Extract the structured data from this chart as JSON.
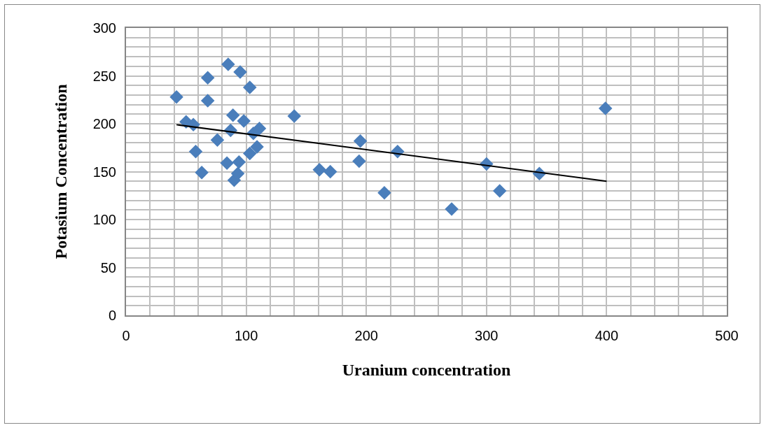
{
  "chart_data": {
    "type": "scatter",
    "xlabel": "Uranium concentration",
    "ylabel": "Potasium Concentration",
    "xlim": [
      0,
      500
    ],
    "ylim": [
      0,
      300
    ],
    "xticks": [
      0,
      {
        "value": 20,
        "label": null
      },
      {
        "value": 40,
        "label": null
      },
      {
        "value": 60,
        "label": null
      },
      {
        "value": 80,
        "label": null
      },
      100,
      {
        "value": 120,
        "label": null
      },
      {
        "value": 140,
        "label": null
      },
      {
        "value": 160,
        "label": null
      },
      {
        "value": 180,
        "label": null
      },
      200,
      {
        "value": 220,
        "label": null
      },
      {
        "value": 240,
        "label": null
      },
      {
        "value": 260,
        "label": null
      },
      {
        "value": 280,
        "label": null
      },
      300,
      {
        "value": 320,
        "label": null
      },
      {
        "value": 340,
        "label": null
      },
      {
        "value": 360,
        "label": null
      },
      {
        "value": 380,
        "label": null
      },
      400,
      {
        "value": 420,
        "label": null
      },
      {
        "value": 440,
        "label": null
      },
      {
        "value": 460,
        "label": null
      },
      {
        "value": 480,
        "label": null
      },
      500
    ],
    "yticks": [
      0,
      {
        "value": 10,
        "label": null
      },
      {
        "value": 20,
        "label": null
      },
      {
        "value": 30,
        "label": null
      },
      {
        "value": 40,
        "label": null
      },
      50,
      {
        "value": 60,
        "label": null
      },
      {
        "value": 70,
        "label": null
      },
      {
        "value": 80,
        "label": null
      },
      {
        "value": 90,
        "label": null
      },
      100,
      {
        "value": 110,
        "label": null
      },
      {
        "value": 120,
        "label": null
      },
      {
        "value": 130,
        "label": null
      },
      {
        "value": 140,
        "label": null
      },
      150,
      {
        "value": 160,
        "label": null
      },
      {
        "value": 170,
        "label": null
      },
      {
        "value": 180,
        "label": null
      },
      {
        "value": 190,
        "label": null
      },
      200,
      {
        "value": 210,
        "label": null
      },
      {
        "value": 220,
        "label": null
      },
      {
        "value": 230,
        "label": null
      },
      {
        "value": 240,
        "label": null
      },
      250,
      {
        "value": 260,
        "label": null
      },
      {
        "value": 270,
        "label": null
      },
      {
        "value": 280,
        "label": null
      },
      {
        "value": 290,
        "label": null
      },
      300
    ],
    "grid": true,
    "marker": "diamond",
    "series": [
      {
        "color": "#4a7ebb",
        "x": [
          42,
          50,
          56,
          58,
          63,
          68,
          68,
          76,
          85,
          84,
          87,
          89,
          90,
          93,
          94,
          95,
          98,
          103,
          103,
          106,
          109,
          111,
          140,
          161,
          170,
          195,
          194,
          215,
          226,
          271,
          300,
          311,
          344,
          399
        ],
        "values": [
          228,
          202,
          199,
          171,
          149,
          248,
          224,
          183,
          262,
          159,
          193,
          209,
          141,
          148,
          160,
          254,
          203,
          238,
          169,
          190,
          176,
          195,
          208,
          152,
          150,
          182,
          161,
          128,
          171,
          111,
          158,
          130,
          148,
          216
        ]
      },
      {
        "type": "line",
        "marker": "none",
        "line_style": "solid",
        "color": "#000000",
        "x": [
          42,
          400
        ],
        "values": [
          199,
          140
        ]
      }
    ]
  }
}
